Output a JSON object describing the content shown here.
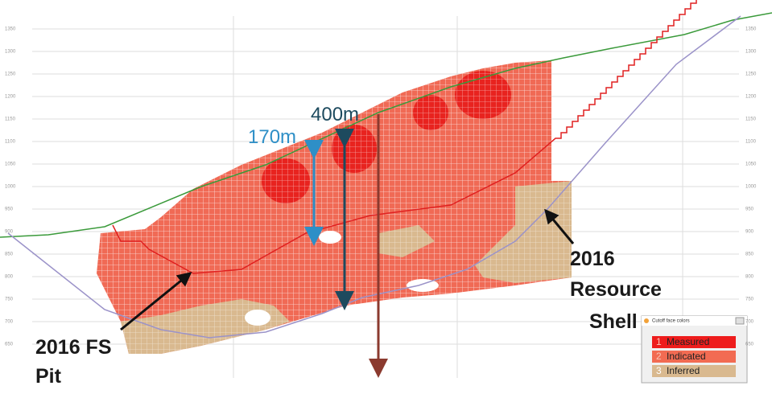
{
  "annotations": {
    "depth_400": "400m",
    "depth_170": "170m",
    "fs_pit": [
      "2016 FS",
      "Pit"
    ],
    "resource_shell": [
      "2016",
      "Resource",
      "Shell"
    ]
  },
  "legend": {
    "title": "Cutoff face colors",
    "items": [
      {
        "number": "1",
        "label": "Measured"
      },
      {
        "number": "2",
        "label": "Indicated"
      },
      {
        "number": "3",
        "label": "Inferred"
      }
    ]
  },
  "elevation_labels": {
    "left": [
      "1350",
      "1300",
      "1250",
      "1200",
      "1150",
      "1100",
      "1050",
      "1000",
      "950",
      "900",
      "850",
      "800",
      "750",
      "700",
      "650"
    ],
    "right": [
      "1350",
      "1300",
      "1250",
      "1200",
      "1150",
      "1100",
      "1050",
      "1000",
      "950",
      "900",
      "850",
      "800",
      "750",
      "700",
      "650"
    ]
  }
}
